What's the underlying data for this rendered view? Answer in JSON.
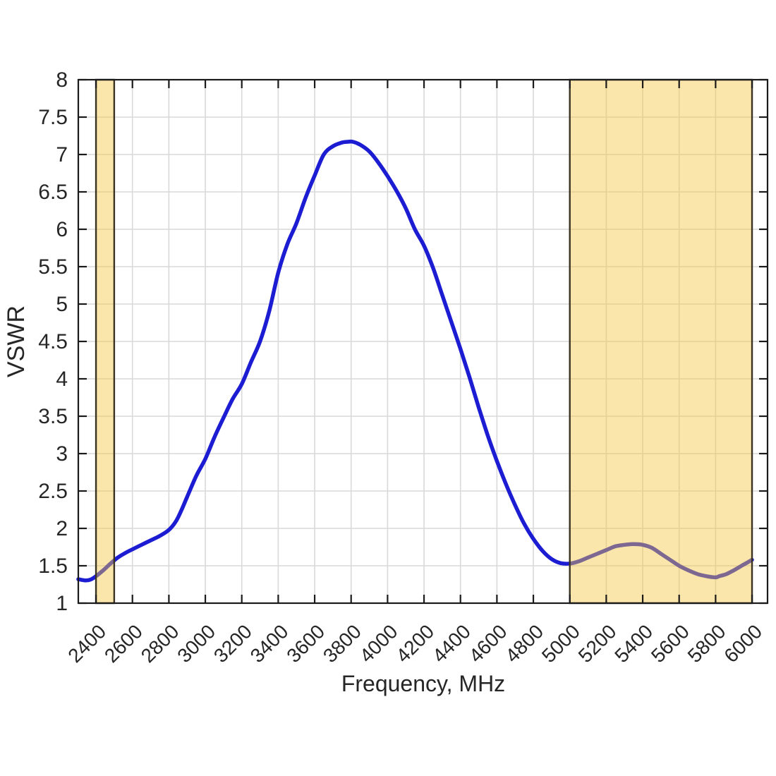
{
  "figure": {
    "background": "#ffffff",
    "text_color": "#262626",
    "axis_line_color": "#1a1a1a",
    "grid_color": "#d9d9d9"
  },
  "chart_data": {
    "type": "line",
    "title": "",
    "xlabel": "Frequency, MHz",
    "ylabel": "VSWR",
    "xlim": [
      2303,
      6085
    ],
    "ylim": [
      1,
      8
    ],
    "x_ticks": [
      2400,
      2600,
      2800,
      3000,
      3200,
      3400,
      3600,
      3800,
      4000,
      4200,
      4400,
      4600,
      4800,
      5000,
      5200,
      5400,
      5600,
      5800,
      6000
    ],
    "y_ticks": [
      1,
      1.5,
      2,
      2.5,
      3,
      3.5,
      4,
      4.5,
      5,
      5.5,
      6,
      6.5,
      7,
      7.5,
      8
    ],
    "x_tick_rotation_deg": 45,
    "grid": true,
    "legend": "none",
    "series": [
      {
        "name": "VSWR",
        "color": "#1c1cd2",
        "width": 5.5,
        "points": [
          [
            2303,
            1.32
          ],
          [
            2340,
            1.305
          ],
          [
            2370,
            1.315
          ],
          [
            2400,
            1.36
          ],
          [
            2440,
            1.44
          ],
          [
            2480,
            1.53
          ],
          [
            2520,
            1.61
          ],
          [
            2560,
            1.67
          ],
          [
            2600,
            1.72
          ],
          [
            2650,
            1.78
          ],
          [
            2700,
            1.84
          ],
          [
            2750,
            1.9
          ],
          [
            2800,
            1.98
          ],
          [
            2840,
            2.1
          ],
          [
            2870,
            2.25
          ],
          [
            2900,
            2.42
          ],
          [
            2950,
            2.7
          ],
          [
            3000,
            2.93
          ],
          [
            3050,
            3.22
          ],
          [
            3100,
            3.48
          ],
          [
            3150,
            3.73
          ],
          [
            3200,
            3.93
          ],
          [
            3250,
            4.22
          ],
          [
            3300,
            4.5
          ],
          [
            3350,
            4.9
          ],
          [
            3400,
            5.42
          ],
          [
            3450,
            5.8
          ],
          [
            3500,
            6.08
          ],
          [
            3550,
            6.42
          ],
          [
            3600,
            6.72
          ],
          [
            3650,
            7.0
          ],
          [
            3700,
            7.11
          ],
          [
            3750,
            7.16
          ],
          [
            3780,
            7.17
          ],
          [
            3810,
            7.17
          ],
          [
            3850,
            7.13
          ],
          [
            3900,
            7.04
          ],
          [
            3950,
            6.89
          ],
          [
            4000,
            6.71
          ],
          [
            4050,
            6.51
          ],
          [
            4100,
            6.28
          ],
          [
            4150,
            6.0
          ],
          [
            4200,
            5.78
          ],
          [
            4250,
            5.48
          ],
          [
            4300,
            5.12
          ],
          [
            4350,
            4.76
          ],
          [
            4400,
            4.4
          ],
          [
            4450,
            4.02
          ],
          [
            4500,
            3.62
          ],
          [
            4550,
            3.24
          ],
          [
            4600,
            2.9
          ],
          [
            4650,
            2.59
          ],
          [
            4700,
            2.31
          ],
          [
            4750,
            2.06
          ],
          [
            4800,
            1.86
          ],
          [
            4850,
            1.7
          ],
          [
            4900,
            1.59
          ],
          [
            4950,
            1.535
          ],
          [
            5000,
            1.53
          ],
          [
            5050,
            1.56
          ],
          [
            5100,
            1.61
          ],
          [
            5150,
            1.66
          ],
          [
            5200,
            1.71
          ],
          [
            5250,
            1.76
          ],
          [
            5300,
            1.78
          ],
          [
            5350,
            1.79
          ],
          [
            5400,
            1.78
          ],
          [
            5450,
            1.74
          ],
          [
            5500,
            1.66
          ],
          [
            5550,
            1.58
          ],
          [
            5600,
            1.5
          ],
          [
            5650,
            1.44
          ],
          [
            5700,
            1.39
          ],
          [
            5750,
            1.36
          ],
          [
            5800,
            1.345
          ],
          [
            5820,
            1.36
          ],
          [
            5860,
            1.39
          ],
          [
            5900,
            1.44
          ],
          [
            5950,
            1.51
          ],
          [
            6000,
            1.58
          ]
        ]
      }
    ],
    "bands": [
      {
        "name": "band-2400-2500",
        "from": 2400,
        "to": 2500
      },
      {
        "name": "band-5000-6000",
        "from": 5000,
        "to": 6000
      }
    ],
    "band_fill": "rgba(244, 197, 66, 0.45)",
    "band_border": "#3a3322"
  }
}
